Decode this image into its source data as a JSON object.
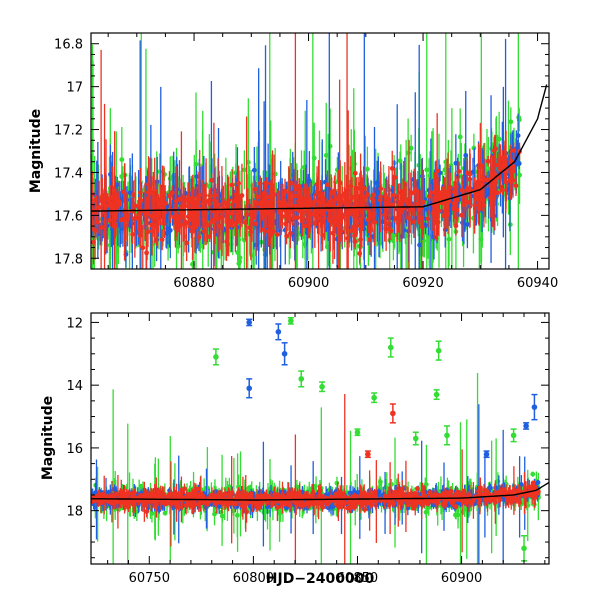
{
  "chart_data": [
    {
      "type": "scatter",
      "title": "",
      "xlabel": "",
      "ylabel": "Magnitude",
      "xlim": [
        60862,
        60942
      ],
      "ylim": [
        17.85,
        16.75
      ],
      "y_inverted": true,
      "grid": false,
      "x_ticks": [
        60880,
        60900,
        60920,
        60940
      ],
      "y_ticks": [
        16.8,
        17,
        17.2,
        17.4,
        17.6,
        17.8
      ],
      "series": [
        {
          "color": "#33dd33",
          "marker": "circle",
          "error_bars": true
        },
        {
          "color": "#1f5fe0",
          "marker": "circle",
          "error_bars": true
        },
        {
          "color": "#ee3322",
          "marker": "circle",
          "error_bars": true
        }
      ],
      "model_curve": {
        "color": "#000000",
        "points": [
          [
            60862,
            17.58
          ],
          [
            60920,
            17.56
          ],
          [
            60930,
            17.48
          ],
          [
            60936,
            17.35
          ],
          [
            60940,
            17.15
          ],
          [
            60942,
            16.95
          ]
        ]
      }
    },
    {
      "type": "scatter",
      "title": "",
      "xlabel": "HJD−2400000",
      "ylabel": "Magnitude",
      "xlim": [
        60722,
        60942
      ],
      "ylim": [
        19.7,
        11.7
      ],
      "y_inverted": true,
      "grid": false,
      "x_ticks": [
        60750,
        60800,
        60850,
        60900
      ],
      "y_ticks": [
        12,
        14,
        16,
        18
      ],
      "series": [
        {
          "color": "#33dd33",
          "marker": "circle",
          "error_bars": true
        },
        {
          "color": "#1f5fe0",
          "marker": "circle",
          "error_bars": true
        },
        {
          "color": "#ee3322",
          "marker": "circle",
          "error_bars": true
        }
      ],
      "outliers": [
        {
          "series": 1,
          "x": 60798,
          "y": 12.0,
          "err": 0.1
        },
        {
          "series": 1,
          "x": 60798,
          "y": 14.1,
          "err": 0.3
        },
        {
          "series": 1,
          "x": 60812,
          "y": 12.3,
          "err": 0.25
        },
        {
          "series": 1,
          "x": 60815,
          "y": 13.0,
          "err": 0.35
        },
        {
          "series": 0,
          "x": 60782,
          "y": 13.1,
          "err": 0.25
        },
        {
          "series": 0,
          "x": 60818,
          "y": 11.95,
          "err": 0.1
        },
        {
          "series": 0,
          "x": 60823,
          "y": 13.8,
          "err": 0.25
        },
        {
          "series": 0,
          "x": 60833,
          "y": 14.05,
          "err": 0.15
        },
        {
          "series": 0,
          "x": 60850,
          "y": 15.5,
          "err": 0.1
        },
        {
          "series": 0,
          "x": 60866,
          "y": 12.8,
          "err": 0.3
        },
        {
          "series": 0,
          "x": 60889,
          "y": 12.9,
          "err": 0.3
        },
        {
          "series": 0,
          "x": 60893,
          "y": 15.6,
          "err": 0.3
        },
        {
          "series": 0,
          "x": 60888,
          "y": 14.3,
          "err": 0.15
        },
        {
          "series": 0,
          "x": 60858,
          "y": 14.4,
          "err": 0.15
        },
        {
          "series": 0,
          "x": 60878,
          "y": 15.7,
          "err": 0.2
        },
        {
          "series": 0,
          "x": 60930,
          "y": 19.2,
          "err": 0.4
        },
        {
          "series": 0,
          "x": 60925,
          "y": 15.6,
          "err": 0.2
        },
        {
          "series": 2,
          "x": 60867,
          "y": 14.9,
          "err": 0.3
        },
        {
          "series": 2,
          "x": 60855,
          "y": 16.2,
          "err": 0.1
        },
        {
          "series": 1,
          "x": 60935,
          "y": 14.7,
          "err": 0.4
        },
        {
          "series": 1,
          "x": 60931,
          "y": 15.3,
          "err": 0.1
        },
        {
          "series": 1,
          "x": 60912,
          "y": 16.2,
          "err": 0.1
        }
      ],
      "model_curve": {
        "color": "#000000",
        "points": [
          [
            60722,
            17.62
          ],
          [
            60800,
            17.66
          ],
          [
            60900,
            17.6
          ],
          [
            60925,
            17.5
          ],
          [
            60936,
            17.35
          ],
          [
            60942,
            17.1
          ]
        ]
      }
    }
  ]
}
